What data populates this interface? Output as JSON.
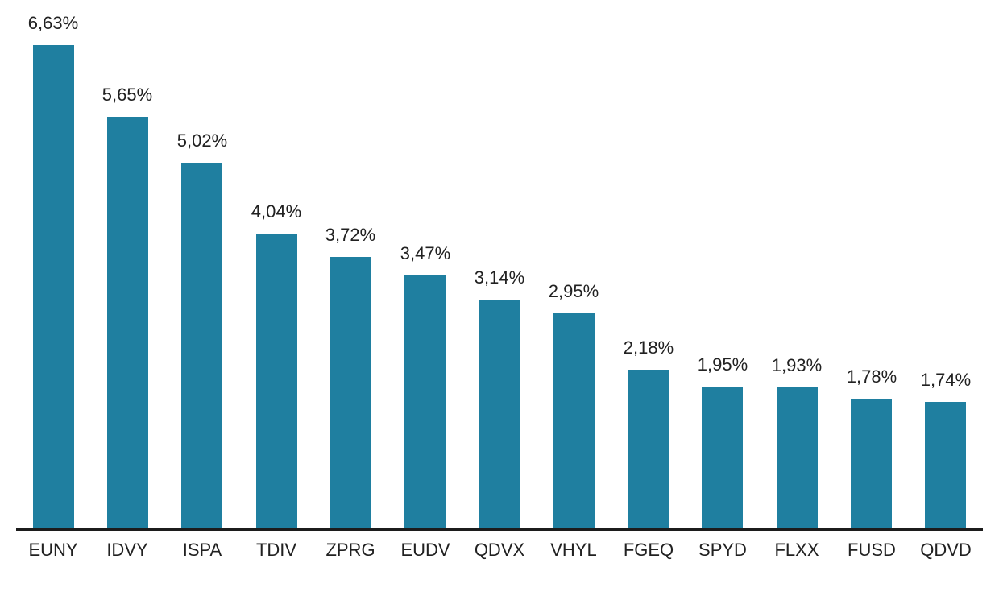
{
  "chart_data": {
    "type": "bar",
    "categories": [
      "EUNY",
      "IDVY",
      "ISPA",
      "TDIV",
      "ZPRG",
      "EUDV",
      "QDVX",
      "VHYL",
      "FGEQ",
      "SPYD",
      "FLXX",
      "FUSD",
      "QDVD"
    ],
    "values": [
      6.63,
      5.65,
      5.02,
      4.04,
      3.72,
      3.47,
      3.14,
      2.95,
      2.18,
      1.95,
      1.93,
      1.78,
      1.74
    ],
    "value_labels": [
      "6,63%",
      "5,65%",
      "5,02%",
      "4,04%",
      "3,72%",
      "3,47%",
      "3,14%",
      "2,95%",
      "2,18%",
      "1,95%",
      "1,93%",
      "1,78%",
      "1,74%"
    ],
    "title": "",
    "xlabel": "",
    "ylabel": "",
    "ylim": [
      0,
      7.3
    ],
    "grid": false,
    "legend": false,
    "bar_color": "#1F7FA0",
    "axis_line_color": "#1c1c1c",
    "label_color": "#212121",
    "background_color": "#ffffff"
  }
}
